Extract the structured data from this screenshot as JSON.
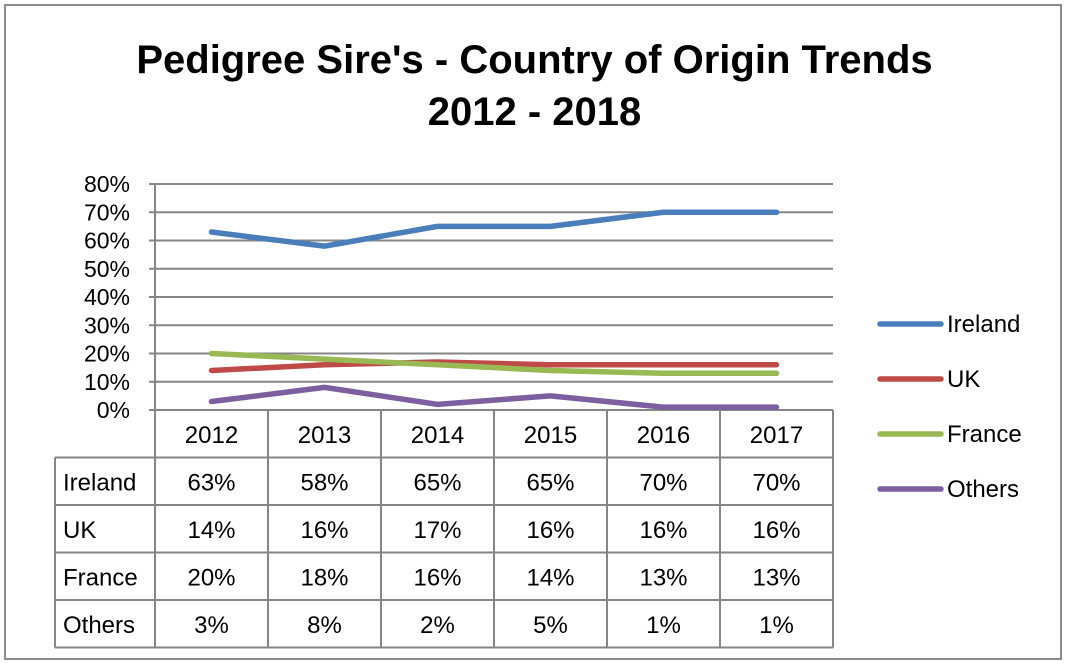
{
  "chart_data": {
    "type": "line",
    "title": "Pedigree Sire's - Country of Origin Trends 2012 - 2018",
    "title_lines": [
      "Pedigree Sire's - Country of Origin Trends",
      "2012 - 2018"
    ],
    "categories": [
      "2012",
      "2013",
      "2014",
      "2015",
      "2016",
      "2017"
    ],
    "y_ticks": [
      "80%",
      "70%",
      "60%",
      "50%",
      "40%",
      "30%",
      "20%",
      "10%",
      "0%"
    ],
    "ylim": [
      0,
      80
    ],
    "grid": true,
    "legend_position": "right",
    "series": [
      {
        "name": "Ireland",
        "color": "#4a7ebb",
        "values": [
          63,
          58,
          65,
          65,
          70,
          70
        ],
        "labels": [
          "63%",
          "58%",
          "65%",
          "65%",
          "70%",
          "70%"
        ]
      },
      {
        "name": "UK",
        "color": "#be4b48",
        "values": [
          14,
          16,
          17,
          16,
          16,
          16
        ],
        "labels": [
          "14%",
          "16%",
          "17%",
          "16%",
          "16%",
          "16%"
        ]
      },
      {
        "name": "France",
        "color": "#98b954",
        "values": [
          20,
          18,
          16,
          14,
          13,
          13
        ],
        "labels": [
          "20%",
          "18%",
          "16%",
          "14%",
          "13%",
          "13%"
        ]
      },
      {
        "name": "Others",
        "color": "#7d5fa0",
        "values": [
          3,
          8,
          2,
          5,
          1,
          1
        ],
        "labels": [
          "3%",
          "8%",
          "2%",
          "5%",
          "1%",
          "1%"
        ]
      }
    ]
  }
}
